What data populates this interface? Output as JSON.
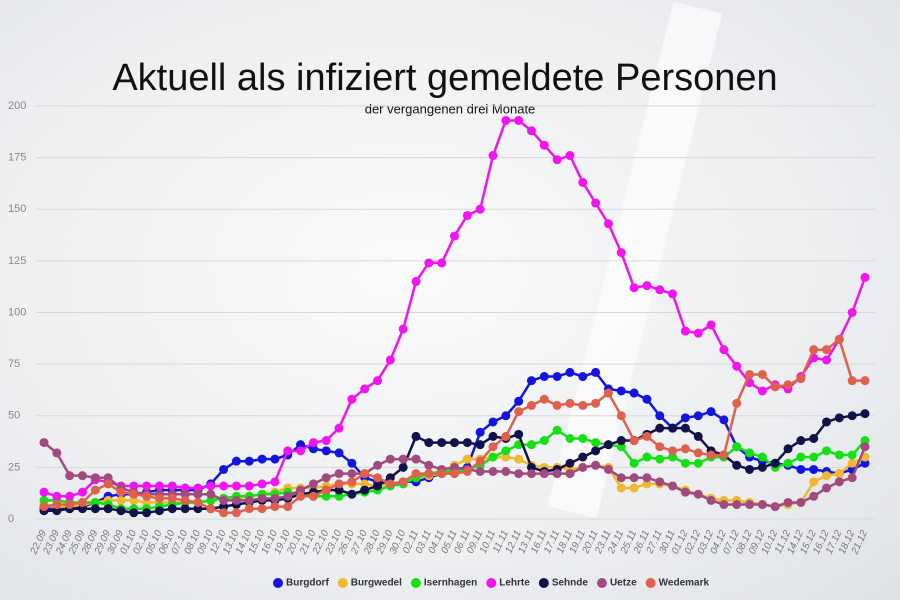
{
  "chart_data": {
    "type": "line",
    "title": "Aktuell als infiziert gemeldete Personen",
    "subtitle": "der vergangenen drei Monate",
    "categories": [
      "22.09",
      "23.09",
      "24.09",
      "25.09",
      "28.09",
      "29.09",
      "30.09",
      "01.10",
      "02.10",
      "05.10",
      "06.10",
      "07.10",
      "08.10",
      "09.10",
      "12.10",
      "13.10",
      "14.10",
      "15.10",
      "16.10",
      "19.10",
      "20.10",
      "21.10",
      "22.10",
      "23.10",
      "26.10",
      "27.10",
      "28.10",
      "29.10",
      "30.10",
      "02.11",
      "03.11",
      "04.11",
      "05.11",
      "06.11",
      "09.11",
      "10.11",
      "11.11",
      "12.11",
      "13.11",
      "16.11",
      "17.11",
      "18.11",
      "19.11",
      "20.11",
      "23.11",
      "24.11",
      "25.11",
      "26.11",
      "27.11",
      "30.11",
      "01.12",
      "02.12",
      "03.12",
      "04.12",
      "07.12",
      "08.12",
      "09.12",
      "10.12",
      "11.12",
      "14.12",
      "15.12",
      "16.12",
      "17.12",
      "18.12",
      "21.12"
    ],
    "series": [
      {
        "name": "Burgdorf",
        "color": "#1414e0",
        "values": [
          5,
          5,
          5,
          6,
          8,
          11,
          12,
          12,
          13,
          14,
          14,
          14,
          14,
          17,
          24,
          28,
          28,
          29,
          29,
          31,
          36,
          34,
          33,
          32,
          27,
          20,
          18,
          17,
          18,
          18,
          20,
          22,
          24,
          25,
          42,
          47,
          50,
          57,
          67,
          69,
          69,
          71,
          69,
          71,
          63,
          62,
          61,
          58,
          50,
          44,
          49,
          50,
          52,
          48,
          35,
          30,
          28,
          27,
          26,
          24,
          24,
          23,
          22,
          24,
          27
        ]
      },
      {
        "name": "Burgwedel",
        "color": "#f0b830",
        "values": [
          7,
          6,
          6,
          7,
          8,
          9,
          9,
          9,
          8,
          8,
          8,
          8,
          8,
          9,
          10,
          10,
          11,
          12,
          13,
          15,
          15,
          15,
          16,
          17,
          17,
          17,
          16,
          17,
          18,
          20,
          21,
          22,
          26,
          29,
          29,
          30,
          30,
          29,
          26,
          25,
          25,
          24,
          25,
          26,
          25,
          15,
          15,
          17,
          17,
          16,
          14,
          12,
          10,
          9,
          9,
          8,
          7,
          6,
          7,
          8,
          18,
          21,
          22,
          27,
          30
        ]
      },
      {
        "name": "Isernhagen",
        "color": "#14e014",
        "values": [
          9,
          9,
          8,
          8,
          8,
          7,
          5,
          5,
          5,
          6,
          7,
          8,
          8,
          9,
          10,
          11,
          11,
          12,
          12,
          13,
          12,
          11,
          11,
          11,
          12,
          13,
          14,
          16,
          17,
          20,
          22,
          23,
          23,
          24,
          26,
          30,
          33,
          36,
          36,
          38,
          43,
          39,
          39,
          37,
          36,
          35,
          27,
          30,
          29,
          30,
          27,
          27,
          30,
          30,
          35,
          32,
          30,
          25,
          27,
          30,
          30,
          33,
          31,
          31,
          38
        ]
      },
      {
        "name": "Lehrte",
        "color": "#f014f0",
        "values": [
          13,
          11,
          11,
          13,
          19,
          18,
          16,
          16,
          16,
          16,
          16,
          15,
          15,
          16,
          16,
          16,
          16,
          17,
          18,
          33,
          33,
          37,
          38,
          44,
          58,
          63,
          67,
          77,
          92,
          115,
          124,
          124,
          137,
          147,
          150,
          176,
          193,
          193,
          188,
          181,
          174,
          176,
          163,
          153,
          143,
          129,
          112,
          113,
          111,
          109,
          91,
          90,
          94,
          82,
          74,
          66,
          62,
          65,
          63,
          69,
          78,
          77,
          87,
          100,
          117
        ]
      },
      {
        "name": "Sehnde",
        "color": "#12124a",
        "values": [
          4,
          4,
          5,
          5,
          5,
          5,
          4,
          3,
          3,
          4,
          5,
          5,
          5,
          5,
          6,
          7,
          8,
          9,
          9,
          10,
          12,
          13,
          14,
          14,
          12,
          14,
          16,
          20,
          25,
          40,
          37,
          37,
          37,
          37,
          36,
          40,
          39,
          41,
          25,
          23,
          24,
          27,
          30,
          33,
          36,
          38,
          38,
          41,
          44,
          44,
          44,
          40,
          33,
          31,
          26,
          24,
          25,
          27,
          34,
          38,
          39,
          47,
          49,
          50,
          51
        ]
      },
      {
        "name": "Uetze",
        "color": "#a04a80",
        "values": [
          37,
          32,
          21,
          21,
          20,
          20,
          15,
          13,
          12,
          12,
          12,
          12,
          12,
          12,
          9,
          9,
          9,
          10,
          10,
          11,
          14,
          17,
          20,
          22,
          22,
          22,
          26,
          29,
          29,
          29,
          26,
          24,
          25,
          24,
          23,
          23,
          23,
          22,
          22,
          22,
          22,
          22,
          25,
          26,
          24,
          20,
          20,
          20,
          18,
          16,
          13,
          12,
          9,
          7,
          7,
          7,
          7,
          6,
          8,
          8,
          11,
          15,
          18,
          20,
          35
        ]
      },
      {
        "name": "Wedemark",
        "color": "#e06050",
        "values": [
          6,
          7,
          7,
          8,
          14,
          17,
          13,
          12,
          11,
          10,
          10,
          9,
          8,
          5,
          3,
          3,
          5,
          5,
          6,
          6,
          11,
          11,
          14,
          17,
          18,
          22,
          20,
          17,
          18,
          22,
          22,
          22,
          22,
          23,
          28,
          35,
          40,
          52,
          55,
          58,
          55,
          56,
          55,
          56,
          61,
          50,
          38,
          40,
          35,
          33,
          34,
          32,
          31,
          31,
          56,
          70,
          70,
          64,
          65,
          68,
          82,
          82,
          87,
          67,
          67
        ]
      }
    ],
    "ylim": [
      0,
      200
    ],
    "yticks": [
      0,
      25,
      50,
      75,
      100,
      125,
      150,
      175,
      200
    ],
    "grid": true,
    "legend": "bottom"
  }
}
